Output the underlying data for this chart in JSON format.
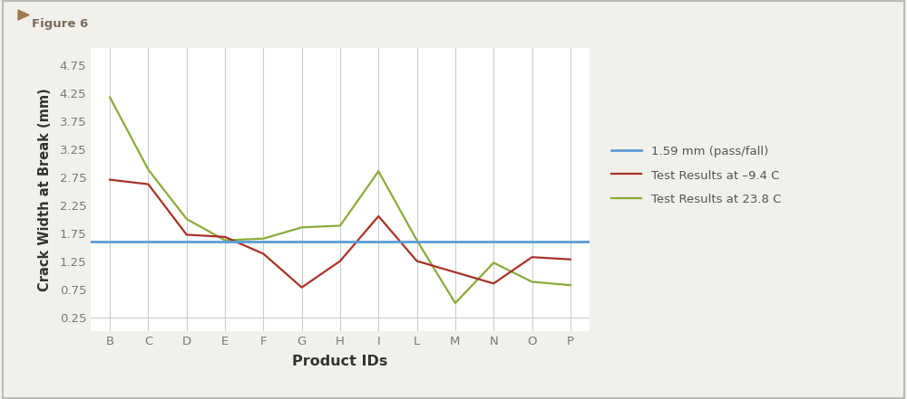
{
  "categories": [
    "B",
    "C",
    "D",
    "E",
    "F",
    "G",
    "H",
    "I",
    "L",
    "M",
    "N",
    "O",
    "P"
  ],
  "red_values": [
    2.7,
    2.62,
    1.72,
    1.68,
    1.38,
    0.78,
    1.25,
    2.05,
    1.25,
    1.05,
    0.85,
    1.32,
    1.28
  ],
  "green_values": [
    4.17,
    2.88,
    2.0,
    1.62,
    1.65,
    1.85,
    1.88,
    2.85,
    1.62,
    0.5,
    1.22,
    0.88,
    0.82
  ],
  "pass_fail_value": 1.59,
  "ylabel": "Crack Width at Break (mm)",
  "xlabel": "Product IDs",
  "title": "Figure 6",
  "ylim": [
    0.0,
    5.05
  ],
  "yticks": [
    0.25,
    0.75,
    1.25,
    1.75,
    2.25,
    2.75,
    3.25,
    3.75,
    4.25,
    4.75
  ],
  "ytick_labels": [
    "0.25",
    "0.75",
    "1.25",
    "1.75",
    "2.25",
    "2.75",
    "3.25",
    "3.75",
    "4.25",
    "4.75"
  ],
  "blue_color": "#5b9bd5",
  "red_color": "#a93226",
  "green_color": "#8aaa3a",
  "bg_color": "#f2f0ec",
  "plot_bg_color": "#ffffff",
  "grid_color": "#cccccc",
  "legend_pass_fail": "1.59 mm (pass/fall)",
  "legend_red": "Test Results at –9.4 C",
  "legend_green": "Test Results at 23.8 C",
  "fig_label_color": "#7a6a5a",
  "fig_arrow_color": "#9e7a50",
  "tick_color": "#777777",
  "label_color": "#333333"
}
